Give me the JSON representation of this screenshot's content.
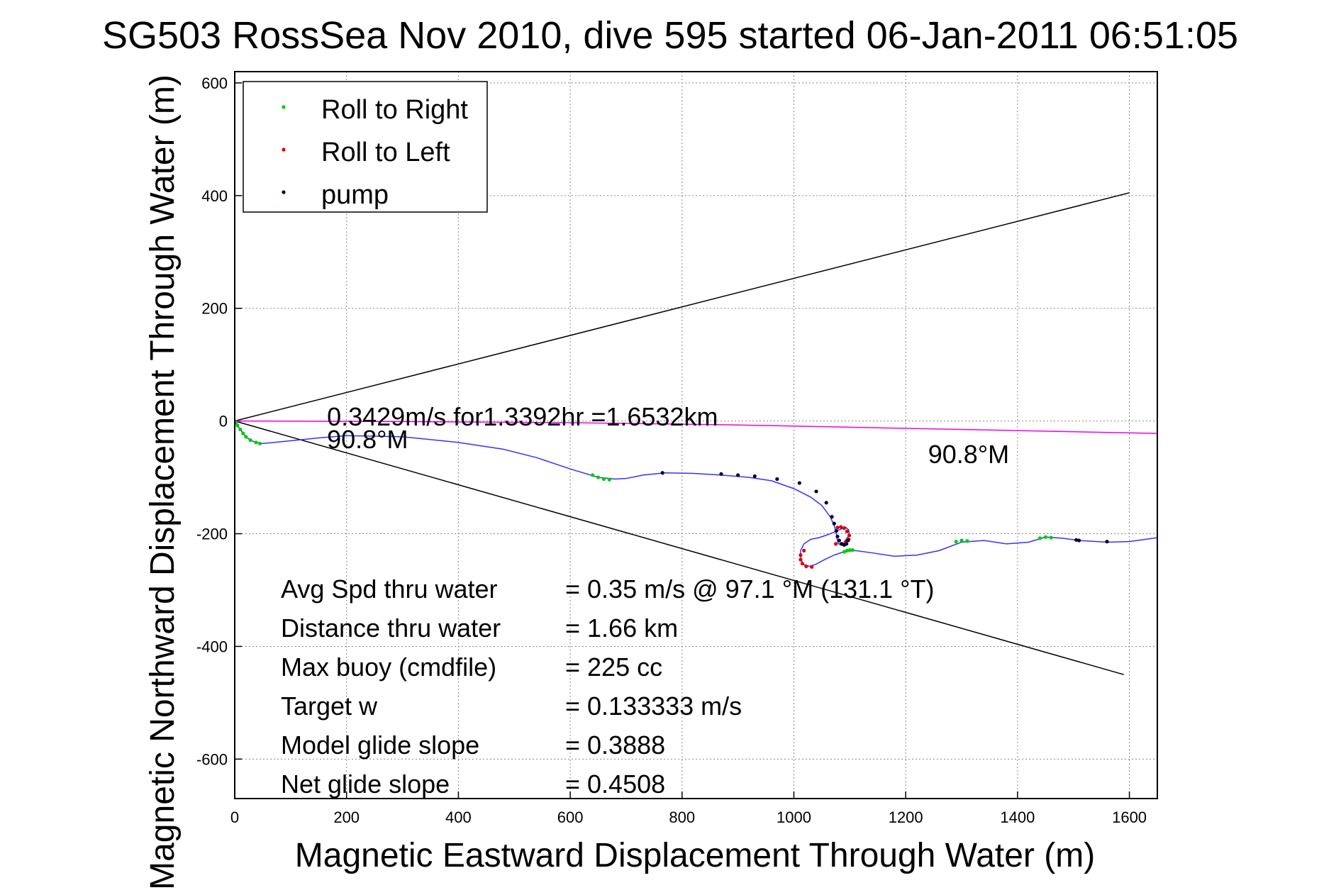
{
  "chart_data": {
    "type": "line",
    "title": "SG503 RossSea Nov 2010, dive 595 started 06-Jan-2011 06:51:05",
    "xlabel": "Magnetic Eastward Displacement Through Water (m)",
    "ylabel": "Magnetic Northward Displacement Through Water (m)",
    "xlim": [
      0,
      1650
    ],
    "ylim": [
      -670,
      620
    ],
    "xticks": [
      0,
      200,
      400,
      600,
      800,
      1000,
      1200,
      1400,
      1600
    ],
    "yticks": [
      -600,
      -400,
      -200,
      0,
      200,
      400,
      600
    ],
    "grid": true,
    "legend_position": "top-left",
    "legend": [
      {
        "label": "Roll to Right",
        "color": "#00cc00"
      },
      {
        "label": "Roll to Left",
        "color": "#dd0000"
      },
      {
        "label": "pump",
        "color": "#000033"
      }
    ],
    "reference_lines": [
      {
        "color": "#000000",
        "x": [
          0,
          1600
        ],
        "y": [
          0,
          405
        ]
      },
      {
        "color": "#000000",
        "x": [
          0,
          1590
        ],
        "y": [
          0,
          -450
        ]
      },
      {
        "color": "#ee00ee",
        "x": [
          0,
          300,
          600,
          900,
          1200,
          1500,
          1650
        ],
        "y": [
          0,
          -1,
          -3,
          -7,
          -13,
          -19,
          -22
        ]
      }
    ],
    "series": [
      {
        "color": "#3333ff",
        "x": [
          0,
          5,
          10,
          15,
          20,
          28,
          38,
          50,
          70,
          100,
          150,
          200,
          300,
          400,
          480,
          540,
          600,
          650,
          680,
          700,
          730,
          770,
          820,
          870,
          920,
          960,
          1000,
          1030,
          1050,
          1065,
          1072,
          1076,
          1078,
          1080,
          1085,
          1088,
          1092,
          1097,
          1099,
          1098,
          1093,
          1086,
          1075,
          1060,
          1045,
          1030,
          1018,
          1012,
          1012,
          1018,
          1028,
          1040,
          1055,
          1072,
          1090,
          1110,
          1140,
          1180,
          1220,
          1260,
          1300,
          1340,
          1380,
          1420,
          1450,
          1480,
          1510,
          1560,
          1600,
          1650
        ],
        "y": [
          0,
          -8,
          -15,
          -22,
          -28,
          -34,
          -38,
          -40,
          -38,
          -35,
          -30,
          -26,
          -28,
          -38,
          -50,
          -65,
          -85,
          -100,
          -103,
          -102,
          -96,
          -92,
          -93,
          -96,
          -100,
          -106,
          -120,
          -135,
          -150,
          -170,
          -185,
          -200,
          -213,
          -218,
          -220,
          -218,
          -212,
          -205,
          -200,
          -193,
          -189,
          -191,
          -196,
          -202,
          -207,
          -210,
          -218,
          -230,
          -245,
          -255,
          -258,
          -254,
          -246,
          -238,
          -232,
          -230,
          -234,
          -240,
          -238,
          -230,
          -215,
          -212,
          -218,
          -215,
          -206,
          -208,
          -212,
          -215,
          -214,
          -207
        ]
      },
      {
        "name": "Roll to Right",
        "color": "#00cc00",
        "x": [
          2,
          5,
          10,
          15,
          20,
          28,
          38,
          45,
          640,
          650,
          660,
          670,
          1090,
          1095,
          1100,
          1105,
          1290,
          1300,
          1310,
          1440,
          1450,
          1460
        ],
        "y": [
          -3,
          -8,
          -15,
          -22,
          -28,
          -34,
          -38,
          -40,
          -96,
          -100,
          -103,
          -104,
          -232,
          -230,
          -229,
          -229,
          -214,
          -212,
          -213,
          -208,
          -206,
          -207
        ]
      },
      {
        "name": "Roll to Left",
        "color": "#dd0000",
        "x": [
          1078,
          1084,
          1090,
          1095,
          1099,
          1098,
          1093,
          1086,
          1075,
          1018,
          1012,
          1012,
          1015,
          1022,
          1032
        ],
        "y": [
          -189,
          -188,
          -190,
          -196,
          -203,
          -210,
          -214,
          -218,
          -218,
          -230,
          -238,
          -246,
          -253,
          -258,
          -259
        ]
      },
      {
        "name": "pump",
        "color": "#000033",
        "x": [
          765,
          870,
          900,
          930,
          970,
          1010,
          1040,
          1058,
          1068,
          1072,
          1076,
          1078,
          1081,
          1085,
          1090,
          1094,
          1097,
          1505,
          1510,
          1560
        ],
        "y": [
          -92,
          -94,
          -96,
          -98,
          -103,
          -110,
          -125,
          -145,
          -170,
          -182,
          -195,
          -205,
          -212,
          -218,
          -220,
          -218,
          -212,
          -211,
          -212,
          -214
        ]
      }
    ],
    "annotations": [
      {
        "text": "0.3429m/s for1.3392hr =1.6532km",
        "x": 165,
        "y": -8
      },
      {
        "text": "90.8°M",
        "x": 165,
        "y": -48
      },
      {
        "text": "90.8°M",
        "x": 1240,
        "y": -75
      }
    ]
  },
  "stats": [
    {
      "label": "Avg Spd thru water",
      "value": "=  0.35 m/s @  97.1 °M (131.1 °T)"
    },
    {
      "label": "Distance thru water",
      "value": "=  1.66 km"
    },
    {
      "label": "Max buoy (cmdfile)",
      "value": "= 225 cc"
    },
    {
      "label": "Target w",
      "value": "= 0.133333 m/s"
    },
    {
      "label": "Model glide slope",
      "value": "= 0.3888"
    },
    {
      "label": "Net glide slope",
      "value": "= 0.4508"
    }
  ]
}
